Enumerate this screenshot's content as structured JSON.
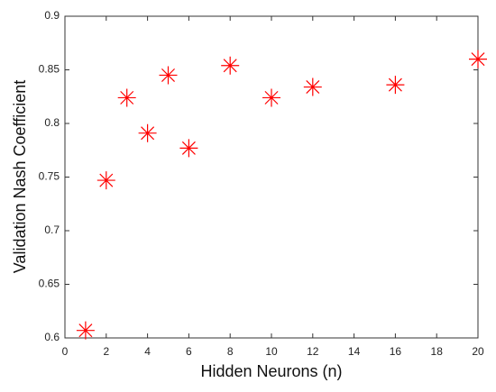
{
  "chart_data": {
    "type": "scatter",
    "x_label": "Hidden Neurons (n)",
    "y_label": "Validation Nash Coefficient",
    "series": [
      {
        "color": "#ff0000",
        "x": [
          1,
          2,
          3,
          4,
          5,
          6,
          8,
          10,
          12,
          16,
          20
        ],
        "values": [
          0.607,
          0.747,
          0.824,
          0.791,
          0.845,
          0.777,
          0.854,
          0.824,
          0.834,
          0.836,
          0.86
        ]
      }
    ],
    "xlim": [
      0,
      20
    ],
    "xticks": [
      0,
      2,
      4,
      6,
      8,
      10,
      12,
      14,
      16,
      18,
      20
    ],
    "ylim": [
      0.6,
      0.9
    ],
    "yticks": [
      0.6,
      0.65,
      0.7,
      0.75,
      0.8,
      0.85,
      0.9
    ],
    "grid": false
  }
}
